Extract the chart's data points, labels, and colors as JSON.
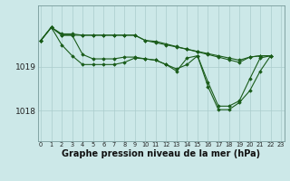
{
  "bg_color": "#cce8e8",
  "line_color": "#1a5c1a",
  "grid_color": "#aacccc",
  "xlabel": "Graphe pression niveau de la mer (hPa)",
  "xlabel_fontsize": 7,
  "ytick_labels": [
    "1018",
    "1019"
  ],
  "ytick_values": [
    1018,
    1019
  ],
  "xtick_labels": [
    "0",
    "1",
    "2",
    "3",
    "4",
    "5",
    "6",
    "7",
    "8",
    "9",
    "10",
    "11",
    "12",
    "13",
    "14",
    "15",
    "16",
    "17",
    "18",
    "19",
    "20",
    "21",
    "22",
    "23"
  ],
  "ylim": [
    1017.3,
    1020.4
  ],
  "xlim": [
    -0.3,
    23.3
  ],
  "series": [
    {
      "x": [
        0,
        1,
        2,
        3,
        4,
        5,
        6,
        7,
        8,
        9,
        10,
        11,
        12,
        13,
        14,
        15,
        16,
        17,
        18,
        19,
        20,
        21,
        22
      ],
      "y": [
        1019.6,
        1019.9,
        1019.75,
        1019.75,
        1019.72,
        1019.72,
        1019.72,
        1019.72,
        1019.72,
        1019.72,
        1019.6,
        1019.58,
        1019.52,
        1019.46,
        1019.4,
        1019.34,
        1019.28,
        1019.22,
        1019.16,
        1019.1,
        1019.22,
        1019.25,
        1019.25
      ]
    },
    {
      "x": [
        0,
        1,
        2,
        3,
        4,
        5,
        6,
        7,
        8,
        9,
        10,
        11,
        12,
        13,
        14,
        15,
        16,
        17,
        18,
        19,
        20,
        21,
        22
      ],
      "y": [
        1019.6,
        1019.9,
        1019.5,
        1019.25,
        1019.05,
        1019.05,
        1019.05,
        1019.05,
        1019.1,
        1019.2,
        1019.18,
        1019.15,
        1019.05,
        1018.9,
        1019.2,
        1019.25,
        1018.65,
        1018.1,
        1018.1,
        1018.22,
        1018.72,
        1019.2,
        1019.25
      ]
    },
    {
      "x": [
        0,
        1,
        2,
        3,
        4,
        5,
        6,
        7,
        8,
        9,
        10,
        11,
        12,
        13,
        14,
        15,
        16,
        17,
        18,
        19,
        20,
        21,
        22
      ],
      "y": [
        1019.6,
        1019.9,
        1019.72,
        1019.72,
        1019.28,
        1019.18,
        1019.18,
        1019.18,
        1019.22,
        1019.22,
        1019.18,
        1019.15,
        1019.05,
        1018.95,
        1019.05,
        1019.25,
        1018.55,
        1018.02,
        1018.02,
        1018.18,
        1018.45,
        1018.9,
        1019.25
      ]
    },
    {
      "x": [
        0,
        1,
        2,
        3,
        4,
        5,
        6,
        7,
        8,
        9,
        10,
        11,
        12,
        13,
        14,
        15,
        16,
        17,
        18,
        19,
        20,
        21,
        22
      ],
      "y": [
        1019.6,
        1019.9,
        1019.72,
        1019.72,
        1019.72,
        1019.72,
        1019.72,
        1019.72,
        1019.72,
        1019.72,
        1019.6,
        1019.55,
        1019.5,
        1019.45,
        1019.4,
        1019.35,
        1019.3,
        1019.25,
        1019.2,
        1019.15,
        1019.22,
        1019.25,
        1019.25
      ]
    }
  ]
}
